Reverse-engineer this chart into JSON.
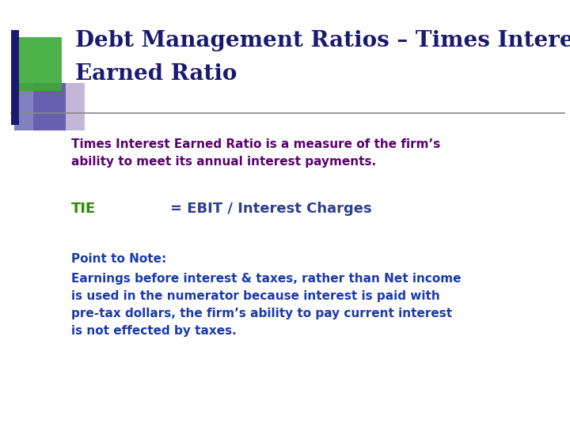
{
  "title_line1": "Debt Management Ratios – Times Interest",
  "title_line2": "Earned Ratio",
  "title_color": "#1a1a6e",
  "bg_color": "#ffffff",
  "separator_color": "#888888",
  "body_text1_line1": "Times Interest Earned Ratio is a measure of the firm’s",
  "body_text1_line2": "ability to meet its annual interest payments.",
  "body_text1_color": "#5b0070",
  "tie_label": "TIE",
  "tie_label_color": "#2e8b00",
  "tie_formula": "= EBIT / Interest Charges",
  "tie_formula_color": "#2e3f8f",
  "point_label": "Point to Note:",
  "point_label_color": "#1a3aab",
  "note_line1": "Earnings before interest & taxes, rather than Net income",
  "note_line2": "is used in the numerator because interest is paid with",
  "note_line3": "pre-tax dollars, the firm’s ability to pay current interest",
  "note_line4": "is not effected by taxes.",
  "note_color": "#1a3aab",
  "green_square_color": "#3aaa35",
  "purple_square_color": "#7b5ea7",
  "navy_bar_color": "#1a1a6e"
}
